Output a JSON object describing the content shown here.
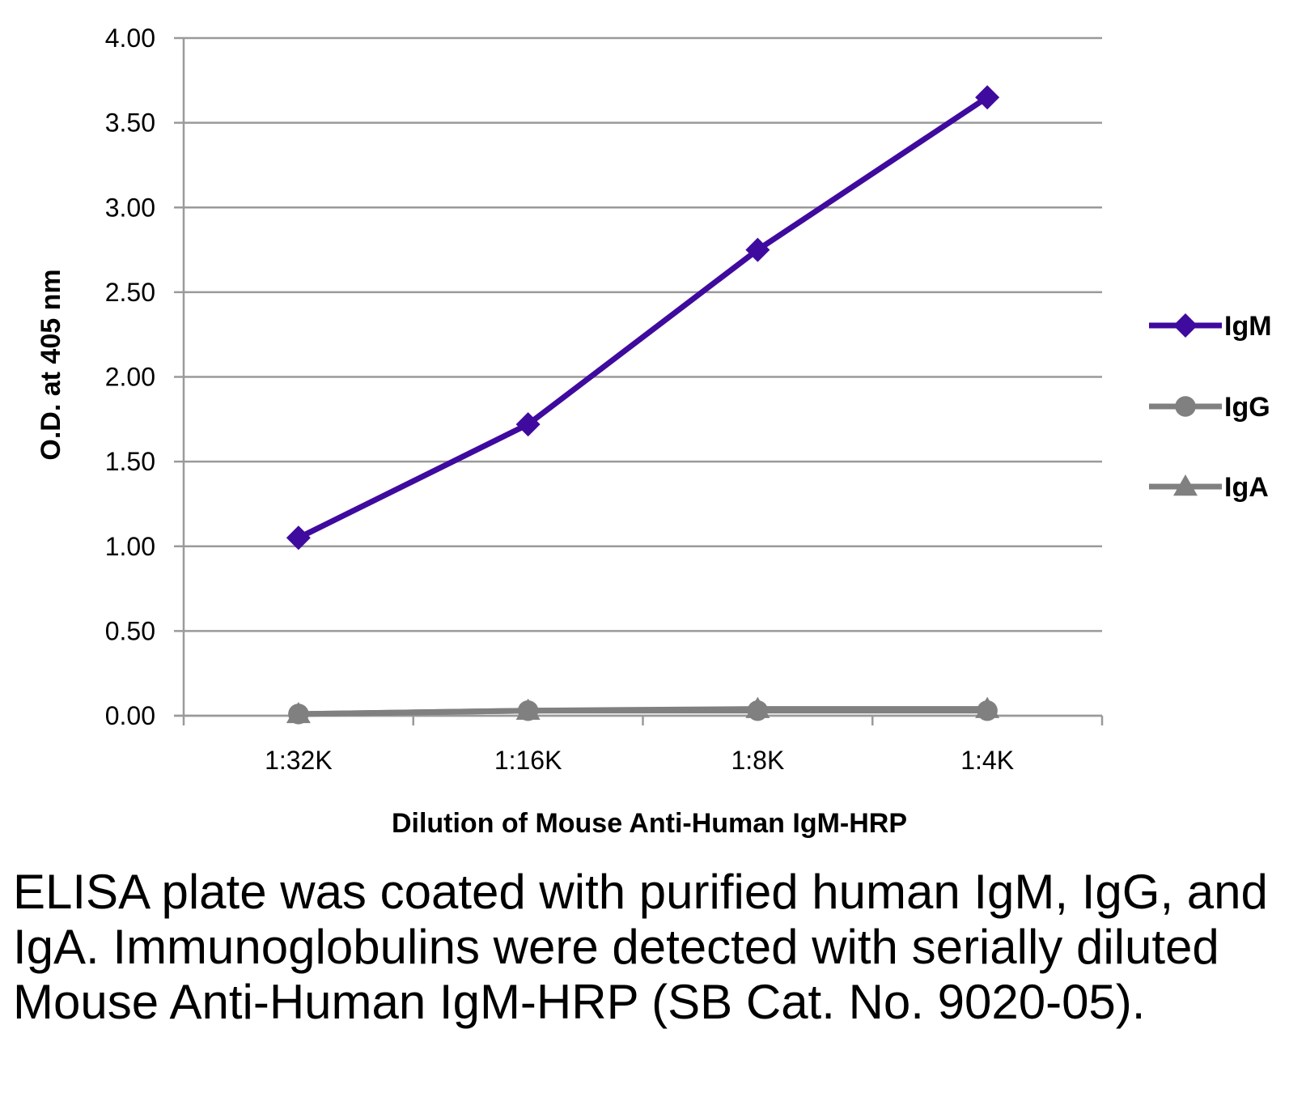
{
  "chart_data": {
    "type": "line",
    "categories": [
      "1:32K",
      "1:16K",
      "1:8K",
      "1:4K"
    ],
    "series": [
      {
        "name": "IgM",
        "values": [
          1.05,
          1.72,
          2.75,
          3.65
        ],
        "color": "#3f0a9e",
        "marker": "diamond"
      },
      {
        "name": "IgG",
        "values": [
          0.01,
          0.03,
          0.03,
          0.03
        ],
        "color": "#808080",
        "marker": "circle"
      },
      {
        "name": "IgA",
        "values": [
          0.01,
          0.03,
          0.04,
          0.04
        ],
        "color": "#808080",
        "marker": "triangle"
      }
    ],
    "xlabel": "Dilution of Mouse Anti-Human IgM-HRP",
    "ylabel": "O.D. at 405 nm",
    "ylim": [
      0,
      4
    ],
    "yticks": [
      "0.00",
      "0.50",
      "1.00",
      "1.50",
      "2.00",
      "2.50",
      "3.00",
      "3.50",
      "4.00"
    ],
    "grid": true,
    "legend_position": "right"
  },
  "caption": "ELISA plate was coated with purified human IgM, IgG, and IgA.  Immunoglobulins were detected with serially diluted Mouse Anti-Human IgM-HRP (SB Cat. No. 9020-05)."
}
